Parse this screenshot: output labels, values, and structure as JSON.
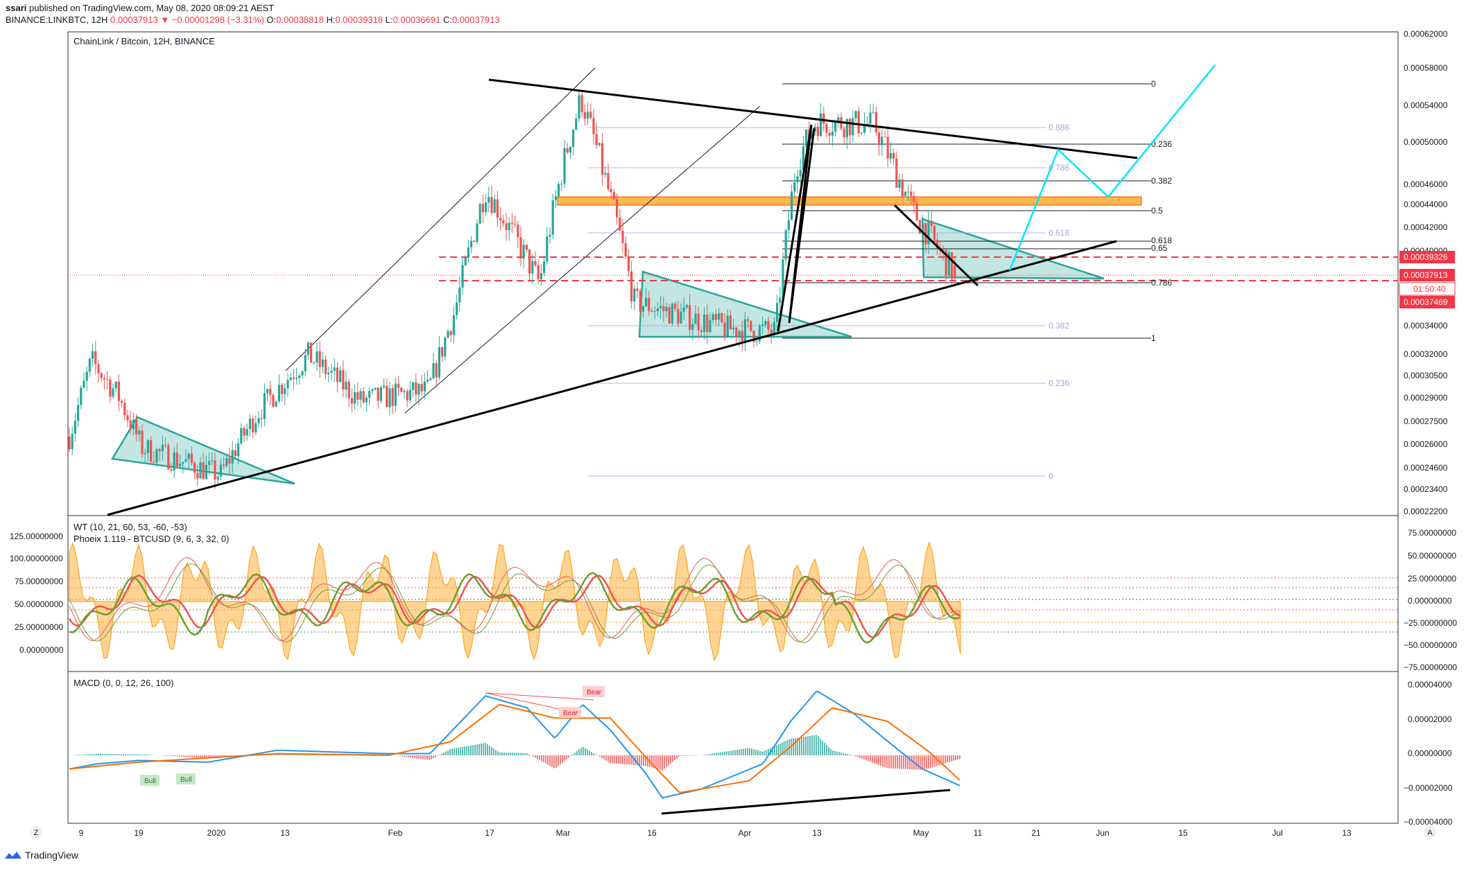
{
  "header": {
    "publisher": "ssari",
    "published_text": "published on TradingView.com, May 08, 2020 08:09:21 AEST",
    "symbol": "BINANCE:LINKBTC, 12H",
    "last": "0.00037913",
    "change": "▼ −0.00001298 (−3.31%)",
    "o_label": "O:",
    "o_val": "0.00038818",
    "h_label": "H:",
    "h_val": "0.00039318",
    "l_label": "L:",
    "l_val": "0.00036691",
    "c_label": "C:",
    "c_val": "0.00037913"
  },
  "main_pane": {
    "title": "ChainLink / Bitcoin, 12H, BINANCE"
  },
  "wt_pane": {
    "title1": "WT (10, 21, 60, 53, -60, -53)",
    "title2": "Phoeix 1.119 - BTCUSD (9, 6, 3, 32, 0)"
  },
  "macd_pane": {
    "title": "MACD (0, 0, 12, 26, 100)"
  },
  "colors": {
    "up": "#26a69a",
    "down": "#ef5350",
    "accent_red": "#f23645",
    "teal_fill": "#26a69a",
    "orange_zone": "#ffb74d",
    "cyan_path": "#00e5ff",
    "macd_line": "#2196f3",
    "signal_line": "#ff6d00",
    "wt_green": "#6a9e2f",
    "wt_red": "#ef5350"
  },
  "price_axis": {
    "ticks": [
      "0.00062000",
      "0.00058000",
      "0.00054000",
      "0.00050000",
      "0.00046000",
      "0.00044000",
      "0.00042000",
      "0.00040000",
      "0.00034000",
      "0.00032000",
      "0.00030500",
      "0.00029000",
      "0.00027500",
      "0.00026000",
      "0.00024600",
      "0.00023400",
      "0.00022200"
    ],
    "price_label": "0.00037913",
    "countdown": "01:50:40",
    "level_top_label": "0.00039326",
    "level_bottom_label": "0.00037469"
  },
  "wt_axis_left": [
    "125.00000000",
    "100.00000000",
    "75.00000000",
    "50.00000000",
    "25.00000000",
    "0.00000000"
  ],
  "wt_axis_right": [
    "75.00000000",
    "50.00000000",
    "25.00000000",
    "0.00000000",
    "−25.00000000",
    "−50.00000000",
    "−75.00000000"
  ],
  "macd_axis": [
    "0.00004000",
    "0.00002000",
    "0.00000000",
    "−0.00002000",
    "−0.00004000"
  ],
  "time_axis": [
    "9",
    "19",
    "2020",
    "13",
    "Feb",
    "17",
    "Mar",
    "16",
    "Apr",
    "13",
    "May",
    "11",
    "21",
    "Jun",
    "15",
    "Jul",
    "13"
  ],
  "fib_right": [
    "0",
    "0.236",
    "0.382",
    "0.5",
    "0.618",
    "0.65",
    "0.786",
    "1"
  ],
  "fib_left": [
    "0.886",
    "0.786",
    "0.618",
    "0.382",
    "0.236",
    "0"
  ],
  "signals": {
    "bull1": "Bull",
    "bull2": "Bull",
    "bear1": "Bear",
    "bear2": "Bear"
  },
  "corner": {
    "z": "Z",
    "a": "A"
  },
  "footer": {
    "brand": "TradingView"
  },
  "chart_data": {
    "type": "candlestick",
    "symbol": "BINANCE:LINKBTC",
    "timeframe": "12H",
    "y_axis_ticks": [
      0.00062,
      0.00058,
      0.00054,
      0.0005,
      0.00046,
      0.00044,
      0.00042,
      0.0004,
      0.00034,
      0.00032,
      0.000305,
      0.00029,
      0.000275,
      0.00026,
      0.000246,
      0.000234,
      0.000222
    ],
    "x_labels": [
      "9",
      "19",
      "2020",
      "13",
      "Feb",
      "17",
      "Mar",
      "16",
      "Apr",
      "13",
      "May",
      "11",
      "21",
      "Jun",
      "15",
      "Jul",
      "13"
    ],
    "closing_path": [
      {
        "x": "Dec 2019",
        "y": 0.000265
      },
      {
        "x": "Dec 10 2019",
        "y": 0.000315
      },
      {
        "x": "Dec 14 2019",
        "y": 0.000292
      },
      {
        "x": "Dec 17 2019",
        "y": 0.000258
      },
      {
        "x": "Jan 2020",
        "y": 0.000242
      },
      {
        "x": "Jan 13 2020",
        "y": 0.000281
      },
      {
        "x": "Jan 22 2020",
        "y": 0.000319
      },
      {
        "x": "Feb 2020",
        "y": 0.000288
      },
      {
        "x": "Feb 7 2020",
        "y": 0.000295
      },
      {
        "x": "Feb 12 2020",
        "y": 0.00035
      },
      {
        "x": "Feb 17 2020",
        "y": 0.000455
      },
      {
        "x": "Feb 27 2020",
        "y": 0.000374
      },
      {
        "x": "Mar 2 2020",
        "y": 0.000478
      },
      {
        "x": "Mar 6 2020",
        "y": 0.000548
      },
      {
        "x": "Mar 12 2020",
        "y": 0.000452
      },
      {
        "x": "Mar 14 2020",
        "y": 0.000359
      },
      {
        "x": "Mar 30 2020",
        "y": 0.000338
      },
      {
        "x": "Apr 7 2020",
        "y": 0.000336
      },
      {
        "x": "Apr 11 2020",
        "y": 0.000478
      },
      {
        "x": "Apr 13 2020",
        "y": 0.000522
      },
      {
        "x": "Apr 23 2020",
        "y": 0.000519
      },
      {
        "x": "May 1 2020",
        "y": 0.000433
      },
      {
        "x": "May 8 2020",
        "y": 0.00037913
      }
    ],
    "last": {
      "open": 0.00038818,
      "high": 0.00039318,
      "low": 0.00036691,
      "close": 0.00037913
    },
    "fib_right": [
      0,
      0.236,
      0.382,
      0.5,
      0.618,
      0.65,
      0.786,
      1
    ],
    "fib_left": [
      0.886,
      0.786,
      0.618,
      0.382,
      0.236,
      0
    ],
    "horizontal_levels": [
      0.00039326,
      0.00037469
    ],
    "wt_ylim": [
      -75,
      75
    ],
    "macd_ylim": [
      -4e-05,
      4e-05
    ]
  }
}
